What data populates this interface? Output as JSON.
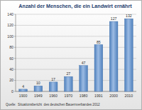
{
  "chart_data": {
    "type": "bar",
    "title": "Anzahl der Menschen, die ein Landwirt ernährt",
    "source": "Quelle:  Situationsbericht  des deutschen Bauernverbandes 2012",
    "categories": [
      "1900",
      "1949",
      "1960",
      "1970",
      "1980",
      "1991",
      "2000",
      "2010"
    ],
    "values": [
      4,
      10,
      17,
      27,
      47,
      85,
      127,
      132
    ],
    "color": "#4f81bd",
    "ylim": [
      0,
      140
    ],
    "yticks": [
      0,
      20,
      40,
      60,
      80,
      100,
      120,
      140
    ],
    "grid": true,
    "data_labels": true
  }
}
